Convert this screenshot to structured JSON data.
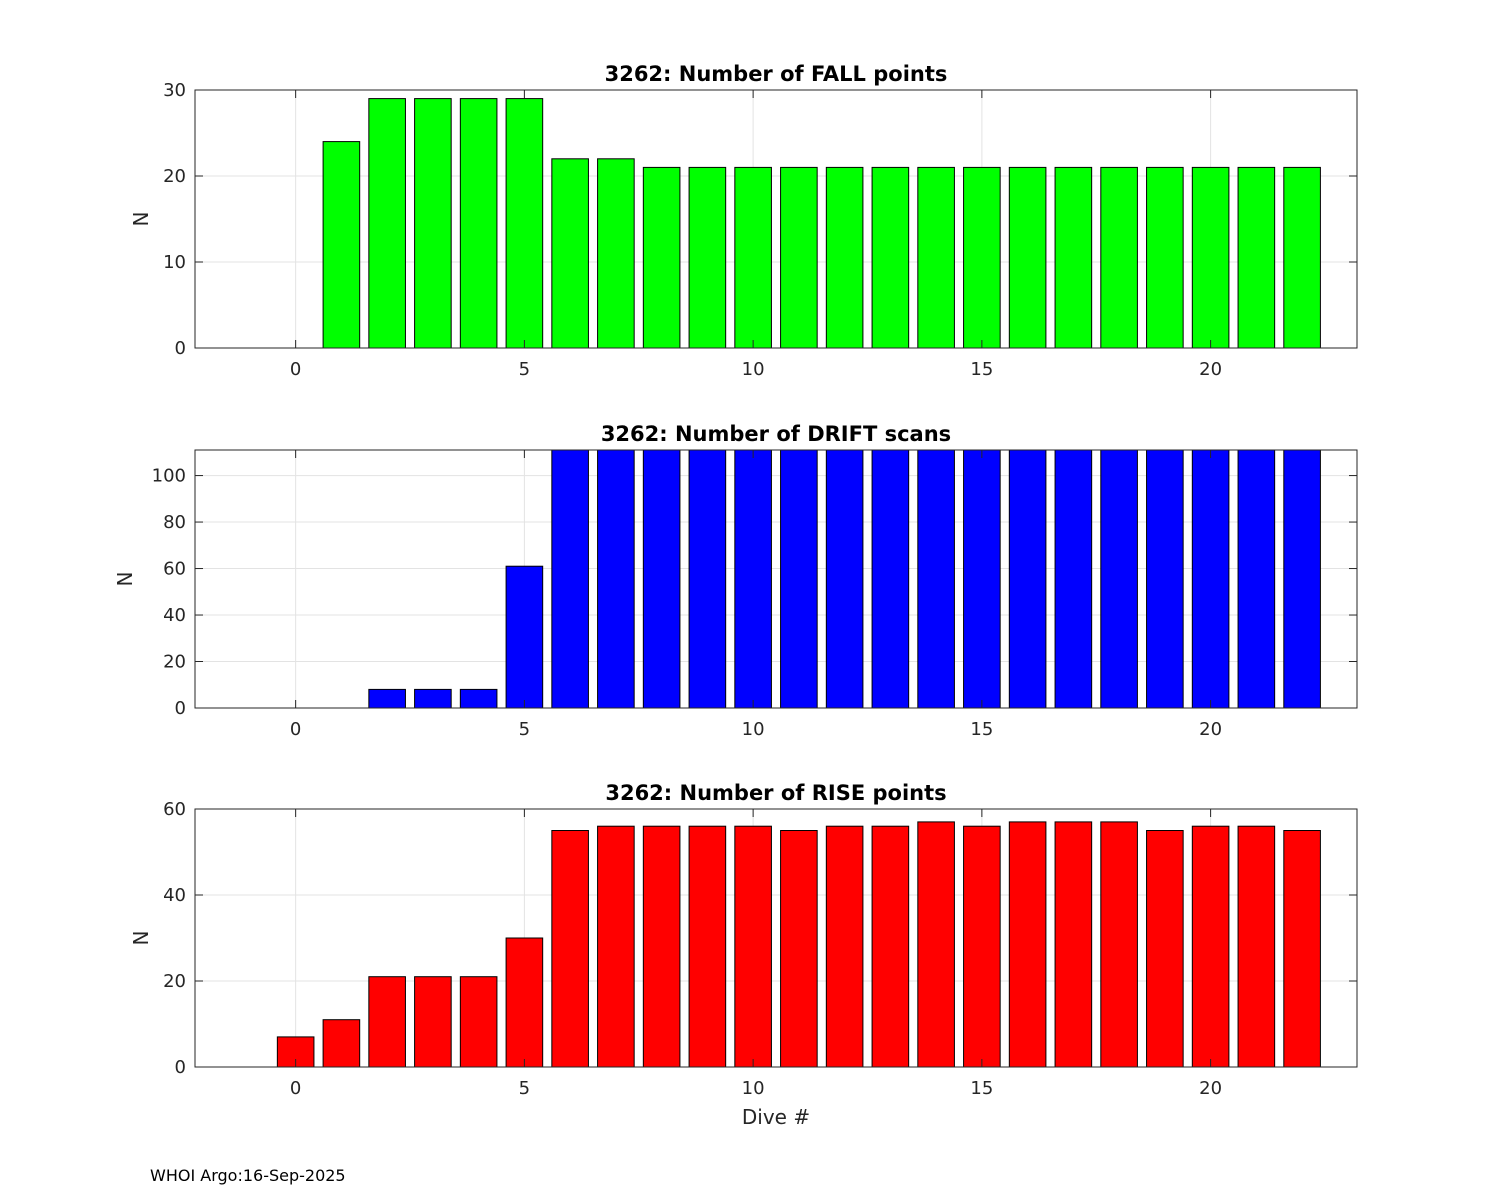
{
  "chart_data": [
    {
      "type": "bar",
      "title": "3262: Number of FALL points",
      "xlabel": "",
      "ylabel": "N",
      "xlim": [
        -2.2,
        23.2
      ],
      "ylim": [
        0,
        30
      ],
      "xticks": [
        0,
        5,
        10,
        15,
        20
      ],
      "yticks": [
        0,
        10,
        20,
        30
      ],
      "grid": true,
      "color": "#00ff00",
      "x": [
        1,
        2,
        3,
        4,
        5,
        6,
        7,
        8,
        9,
        10,
        11,
        12,
        13,
        14,
        15,
        16,
        17,
        18,
        19,
        20,
        21,
        22
      ],
      "values": [
        24,
        29,
        29,
        29,
        29,
        22,
        22,
        21,
        21,
        21,
        21,
        21,
        21,
        21,
        21,
        21,
        21,
        21,
        21,
        21,
        21,
        21
      ]
    },
    {
      "type": "bar",
      "title": "3262: Number of DRIFT scans",
      "xlabel": "",
      "ylabel": "N",
      "xlim": [
        -2.2,
        23.2
      ],
      "ylim": [
        0,
        111
      ],
      "xticks": [
        0,
        5,
        10,
        15,
        20
      ],
      "yticks": [
        0,
        20,
        40,
        60,
        80,
        100
      ],
      "grid": true,
      "color": "#0000ff",
      "x": [
        2,
        3,
        4,
        5,
        6,
        7,
        8,
        9,
        10,
        11,
        12,
        13,
        14,
        15,
        16,
        17,
        18,
        19,
        20,
        21,
        22
      ],
      "values": [
        8,
        8,
        8,
        61,
        111,
        111,
        111,
        111,
        111,
        111,
        111,
        111,
        111,
        111,
        111,
        111,
        111,
        111,
        111,
        111,
        111
      ]
    },
    {
      "type": "bar",
      "title": "3262: Number of RISE points",
      "xlabel": "Dive #",
      "ylabel": "N",
      "xlim": [
        -2.2,
        23.2
      ],
      "ylim": [
        0,
        60
      ],
      "xticks": [
        0,
        5,
        10,
        15,
        20
      ],
      "yticks": [
        0,
        20,
        40,
        60
      ],
      "grid": true,
      "color": "#ff0000",
      "x": [
        0,
        1,
        2,
        3,
        4,
        5,
        6,
        7,
        8,
        9,
        10,
        11,
        12,
        13,
        14,
        15,
        16,
        17,
        18,
        19,
        20,
        21,
        22
      ],
      "values": [
        7,
        11,
        21,
        21,
        21,
        30,
        55,
        56,
        56,
        56,
        56,
        55,
        56,
        56,
        57,
        56,
        57,
        57,
        57,
        55,
        56,
        56,
        55
      ]
    }
  ],
  "footer": {
    "text": "WHOI Argo:16-Sep-2025"
  }
}
